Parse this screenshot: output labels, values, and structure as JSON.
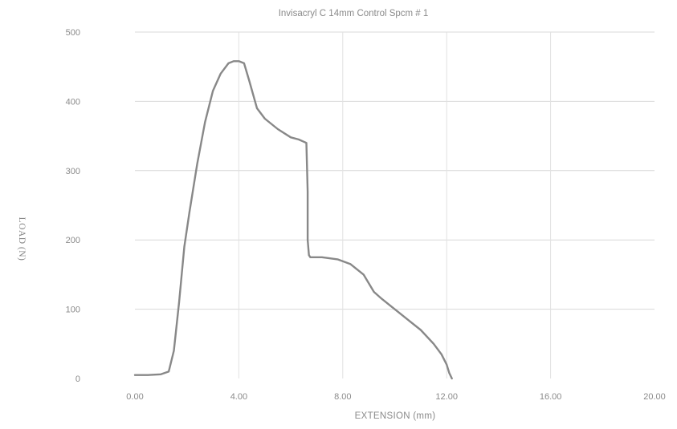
{
  "chart_data": {
    "type": "line",
    "title": "Invisacryl C 14mm Control  Spcm # 1",
    "xlabel": "EXTENSION  (mm)",
    "ylabel": "LOAD (N)",
    "xlim": [
      0,
      20
    ],
    "ylim": [
      0,
      500
    ],
    "x_ticks": [
      "0.00",
      "4.00",
      "8.00",
      "12.00",
      "16.00",
      "20.00"
    ],
    "y_ticks": [
      "0",
      "100",
      "200",
      "300",
      "400",
      "500"
    ],
    "grid": true,
    "series": [
      {
        "color": "#888888",
        "x": [
          0.0,
          0.5,
          1.0,
          1.3,
          1.5,
          1.7,
          1.9,
          2.1,
          2.4,
          2.7,
          3.0,
          3.3,
          3.6,
          3.8,
          4.0,
          4.2,
          4.4,
          4.7,
          5.0,
          5.5,
          6.0,
          6.3,
          6.6,
          6.65,
          6.65,
          6.7,
          6.75,
          7.2,
          7.8,
          8.3,
          8.8,
          9.2,
          9.5,
          10.0,
          10.5,
          11.0,
          11.5,
          11.8,
          12.0,
          12.1,
          12.2
        ],
        "y": [
          5,
          5,
          6,
          10,
          40,
          110,
          190,
          240,
          310,
          370,
          415,
          440,
          455,
          458,
          458,
          455,
          430,
          390,
          375,
          360,
          348,
          345,
          340,
          270,
          200,
          178,
          175,
          175,
          172,
          165,
          150,
          125,
          115,
          100,
          85,
          70,
          50,
          35,
          20,
          8,
          0
        ]
      }
    ]
  }
}
